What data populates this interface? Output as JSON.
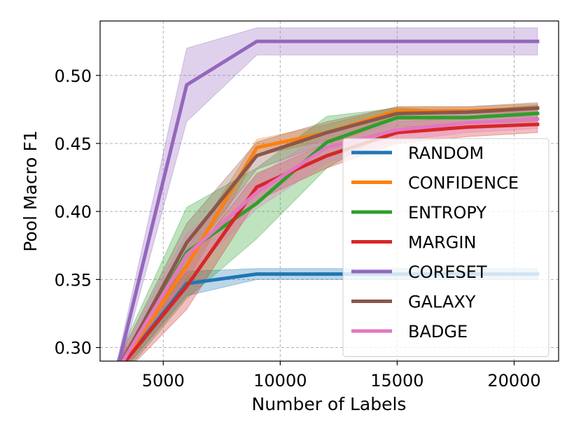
{
  "chart_data": {
    "type": "line",
    "title": "",
    "xlabel": "Number of Labels",
    "ylabel": "Pool Macro F1",
    "xlim": [
      2300,
      21900
    ],
    "ylim": [
      0.29,
      0.54
    ],
    "xticks": [
      5000,
      10000,
      15000,
      20000
    ],
    "yticks": [
      0.3,
      0.35,
      0.4,
      0.45,
      0.5
    ],
    "xtick_labels": [
      "5000",
      "10000",
      "15000",
      "20000"
    ],
    "ytick_labels": [
      "0.30",
      "0.35",
      "0.40",
      "0.45",
      "0.50"
    ],
    "grid": true,
    "legend_position": "lower-right",
    "x": [
      3000,
      6000,
      9000,
      12000,
      15000,
      18000,
      21000
    ],
    "series": [
      {
        "name": "RANDOM",
        "color": "#1f77b4",
        "values": [
          0.282,
          0.347,
          0.354,
          0.354,
          0.354,
          0.354,
          0.354
        ],
        "lower": [
          0.277,
          0.338,
          0.35,
          0.35,
          0.35,
          0.35,
          0.35
        ],
        "upper": [
          0.287,
          0.356,
          0.358,
          0.358,
          0.358,
          0.358,
          0.358
        ]
      },
      {
        "name": "CONFIDENCE",
        "color": "#ff7f0e",
        "values": [
          0.282,
          0.36,
          0.447,
          0.458,
          0.474,
          0.474,
          0.476
        ],
        "lower": [
          0.276,
          0.348,
          0.441,
          0.452,
          0.471,
          0.472,
          0.473
        ],
        "upper": [
          0.288,
          0.372,
          0.453,
          0.464,
          0.477,
          0.477,
          0.479
        ]
      },
      {
        "name": "ENTROPY",
        "color": "#2ca02c",
        "values": [
          0.282,
          0.37,
          0.406,
          0.451,
          0.469,
          0.469,
          0.472
        ],
        "lower": [
          0.274,
          0.336,
          0.38,
          0.432,
          0.462,
          0.464,
          0.466
        ],
        "upper": [
          0.29,
          0.403,
          0.432,
          0.47,
          0.476,
          0.474,
          0.478
        ]
      },
      {
        "name": "MARGIN",
        "color": "#d62728",
        "values": [
          0.282,
          0.345,
          0.418,
          0.441,
          0.458,
          0.462,
          0.464
        ],
        "lower": [
          0.275,
          0.328,
          0.408,
          0.432,
          0.45,
          0.455,
          0.458
        ],
        "upper": [
          0.289,
          0.362,
          0.428,
          0.45,
          0.466,
          0.469,
          0.47
        ]
      },
      {
        "name": "CORESET",
        "color": "#9467bd",
        "values": [
          0.282,
          0.493,
          0.525,
          0.525,
          0.525,
          0.525,
          0.525
        ],
        "lower": [
          0.276,
          0.466,
          0.515,
          0.515,
          0.515,
          0.515,
          0.515
        ],
        "upper": [
          0.288,
          0.52,
          0.535,
          0.535,
          0.535,
          0.535,
          0.535
        ]
      },
      {
        "name": "GALAXY",
        "color": "#8c564b",
        "values": [
          0.282,
          0.377,
          0.441,
          0.458,
          0.472,
          0.473,
          0.476
        ],
        "lower": [
          0.275,
          0.364,
          0.431,
          0.45,
          0.467,
          0.469,
          0.472
        ],
        "upper": [
          0.289,
          0.391,
          0.451,
          0.466,
          0.477,
          0.477,
          0.48
        ]
      },
      {
        "name": "BADGE",
        "color": "#e377c2",
        "values": [
          0.282,
          0.368,
          0.414,
          0.447,
          0.46,
          0.465,
          0.468
        ],
        "lower": [
          0.275,
          0.352,
          0.402,
          0.436,
          0.452,
          0.458,
          0.461
        ],
        "upper": [
          0.289,
          0.384,
          0.426,
          0.458,
          0.468,
          0.472,
          0.475
        ]
      }
    ],
    "draw_order": [
      "RANDOM",
      "CONFIDENCE",
      "ENTROPY",
      "MARGIN",
      "CORESET",
      "GALAXY",
      "BADGE"
    ]
  }
}
